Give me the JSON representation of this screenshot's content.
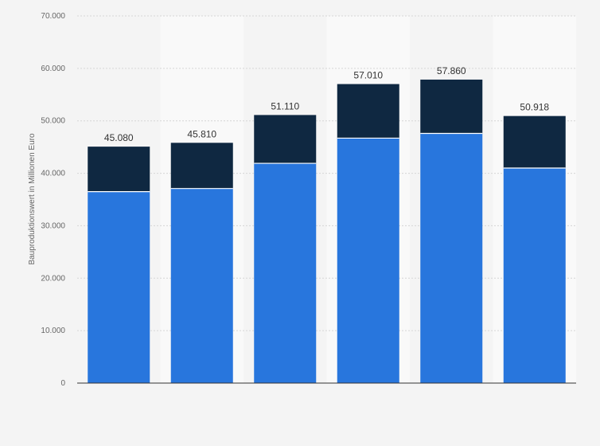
{
  "chart_data": {
    "type": "bar",
    "stacked": true,
    "categories": [
      "",
      "",
      "",
      "",
      "",
      ""
    ],
    "series": [
      {
        "values": [
          36500,
          37100,
          41900,
          46700,
          47600,
          41000
        ],
        "color": "#2876dd"
      },
      {
        "values": [
          8580,
          8710,
          9210,
          10310,
          10260,
          9918
        ],
        "color": "#0f2841"
      }
    ],
    "totals": [
      45080,
      45810,
      51110,
      57010,
      57860,
      50918
    ],
    "data_labels": [
      "45.080",
      "45.810",
      "51.110",
      "57.010",
      "57.860",
      "50.918"
    ],
    "yticks": [
      0,
      10000,
      20000,
      30000,
      40000,
      50000,
      60000,
      70000
    ],
    "ytick_labels": [
      "0",
      "10.000",
      "20.000",
      "30.000",
      "40.000",
      "50.000",
      "60.000",
      "70.000"
    ],
    "ylim": [
      0,
      70000
    ],
    "xlabel": "",
    "ylabel": "Bauproduktionswert in Millionen Euro",
    "grid": true,
    "colors": {
      "background": "#f4f4f4",
      "band": "#f9f9f9",
      "grid": "#d6d6d6",
      "axis": "#333333"
    }
  }
}
